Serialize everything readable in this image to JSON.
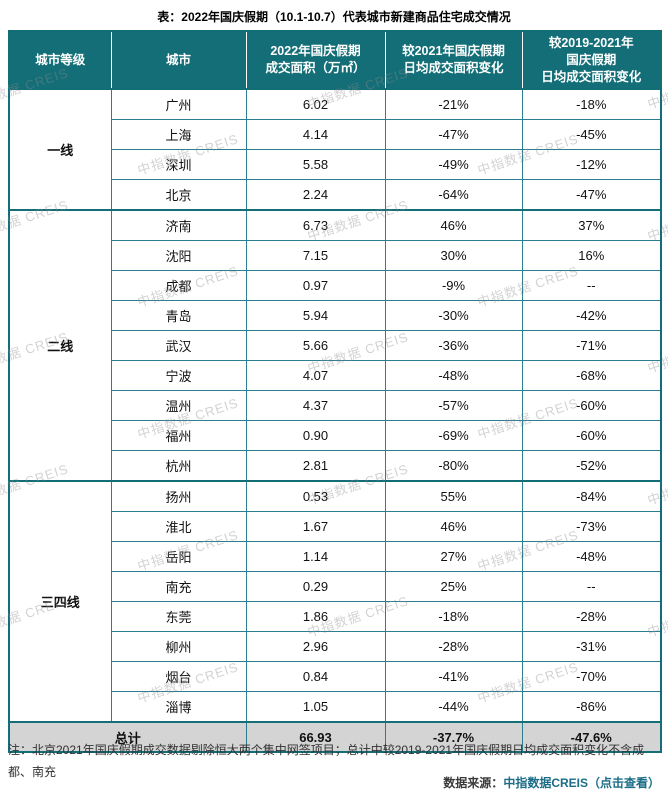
{
  "title": "表：2022年国庆假期（10.1-10.7）代表城市新建商品住宅成交情况",
  "watermark": "中指数据 CREIS",
  "colors": {
    "header_bg": "#136e77",
    "cell_border": "#2b7d92",
    "thick_border": "#136e77",
    "total_bg": "#d4d4d4",
    "link": "#1b6d87",
    "watermark": "#8c8c8c"
  },
  "table": {
    "headers": [
      "城市等级",
      "城市",
      "2022年国庆假期\n成交面积（万㎡）",
      "较2021年国庆假期\n日均成交面积变化",
      "较2019-2021年\n国庆假期\n日均成交面积变化"
    ],
    "groups": [
      {
        "tier": "一线",
        "rows": [
          {
            "city": "广州",
            "area": "6.02",
            "vs2021": "-21%",
            "vs2019_2021": "-18%"
          },
          {
            "city": "上海",
            "area": "4.14",
            "vs2021": "-47%",
            "vs2019_2021": "-45%"
          },
          {
            "city": "深圳",
            "area": "5.58",
            "vs2021": "-49%",
            "vs2019_2021": "-12%"
          },
          {
            "city": "北京",
            "area": "2.24",
            "vs2021": "-64%",
            "vs2019_2021": "-47%"
          }
        ]
      },
      {
        "tier": "二线",
        "rows": [
          {
            "city": "济南",
            "area": "6.73",
            "vs2021": "46%",
            "vs2019_2021": "37%"
          },
          {
            "city": "沈阳",
            "area": "7.15",
            "vs2021": "30%",
            "vs2019_2021": "16%"
          },
          {
            "city": "成都",
            "area": "0.97",
            "vs2021": "-9%",
            "vs2019_2021": "--"
          },
          {
            "city": "青岛",
            "area": "5.94",
            "vs2021": "-30%",
            "vs2019_2021": "-42%"
          },
          {
            "city": "武汉",
            "area": "5.66",
            "vs2021": "-36%",
            "vs2019_2021": "-71%"
          },
          {
            "city": "宁波",
            "area": "4.07",
            "vs2021": "-48%",
            "vs2019_2021": "-68%"
          },
          {
            "city": "温州",
            "area": "4.37",
            "vs2021": "-57%",
            "vs2019_2021": "-60%"
          },
          {
            "city": "福州",
            "area": "0.90",
            "vs2021": "-69%",
            "vs2019_2021": "-60%"
          },
          {
            "city": "杭州",
            "area": "2.81",
            "vs2021": "-80%",
            "vs2019_2021": "-52%"
          }
        ]
      },
      {
        "tier": "三四线",
        "rows": [
          {
            "city": "扬州",
            "area": "0.53",
            "vs2021": "55%",
            "vs2019_2021": "-84%"
          },
          {
            "city": "淮北",
            "area": "1.67",
            "vs2021": "46%",
            "vs2019_2021": "-73%"
          },
          {
            "city": "岳阳",
            "area": "1.14",
            "vs2021": "27%",
            "vs2019_2021": "-48%"
          },
          {
            "city": "南充",
            "area": "0.29",
            "vs2021": "25%",
            "vs2019_2021": "--"
          },
          {
            "city": "东莞",
            "area": "1.86",
            "vs2021": "-18%",
            "vs2019_2021": "-28%"
          },
          {
            "city": "柳州",
            "area": "2.96",
            "vs2021": "-28%",
            "vs2019_2021": "-31%"
          },
          {
            "city": "烟台",
            "area": "0.84",
            "vs2021": "-41%",
            "vs2019_2021": "-70%"
          },
          {
            "city": "淄博",
            "area": "1.05",
            "vs2021": "-44%",
            "vs2019_2021": "-86%"
          }
        ]
      }
    ],
    "total": {
      "label": "总计",
      "area": "66.93",
      "vs2021": "-37.7%",
      "vs2019_2021": "-47.6%"
    }
  },
  "footer": {
    "note": "注：北京2021年国庆假期成交数据剔除恒大两个集中网签项目；总计中较2019-2021年国庆假期日均成交面积变化不含成都、南充",
    "source_label": "数据来源：",
    "source_link": "中指数据CREIS（点击查看）"
  }
}
